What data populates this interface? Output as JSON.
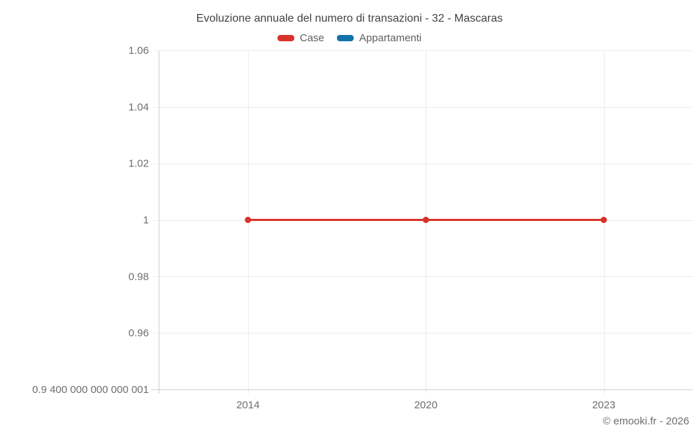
{
  "title": "Evoluzione annuale del numero di transazioni - 32 - Mascaras",
  "legend": {
    "items": [
      {
        "label": "Case",
        "color": "#d8332a"
      },
      {
        "label": "Appartamenti",
        "color": "#1272aa"
      }
    ]
  },
  "footer": {
    "copyright": "© emooki.fr - 2026"
  },
  "colors": {
    "series_case": "#d8332a",
    "series_appartamenti": "#1272aa",
    "gridline": "#ececec",
    "axis_line": "#cfcfcf",
    "title_text": "#424242",
    "axis_text": "#6e6e6e"
  },
  "chart_data": {
    "type": "line",
    "title": "Evoluzione annuale del numero di transazioni - 32 - Mascaras",
    "categories": [
      "2014",
      "2020",
      "2023"
    ],
    "series": [
      {
        "name": "Case",
        "color": "#d8332a",
        "values": [
          1,
          1,
          1
        ]
      },
      {
        "name": "Appartamenti",
        "color": "#1272aa",
        "values": []
      }
    ],
    "xlabel": "",
    "ylabel": "",
    "ylim": [
      0.9400000000000001,
      1.06
    ],
    "y_ticks": [
      {
        "value": 0.9400000000000001,
        "label": "0.9 400 000 000 000 001"
      },
      {
        "value": 0.96,
        "label": "0.96"
      },
      {
        "value": 0.98,
        "label": "0.98"
      },
      {
        "value": 1,
        "label": "1"
      },
      {
        "value": 1.02,
        "label": "1.02"
      },
      {
        "value": 1.04,
        "label": "1.04"
      },
      {
        "value": 1.06,
        "label": "1.06"
      }
    ],
    "grid": true,
    "legend_position": "top",
    "marker": "circle"
  }
}
